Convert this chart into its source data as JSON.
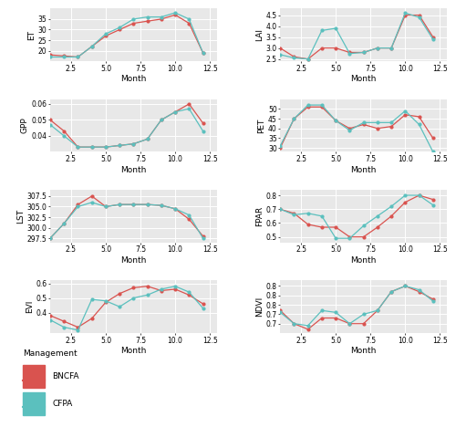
{
  "months": [
    1,
    2,
    3,
    4,
    5,
    6,
    7,
    8,
    9,
    10,
    11,
    12
  ],
  "ET": {
    "BNCFA": [
      18,
      17.5,
      17,
      22,
      27,
      30,
      33,
      34,
      35,
      37,
      33,
      19
    ],
    "CFPA": [
      17,
      17,
      17,
      22,
      28,
      31,
      35,
      36,
      36,
      38,
      35,
      19
    ]
  },
  "LAI": {
    "BNCFA": [
      3.0,
      2.6,
      2.5,
      3.0,
      3.0,
      2.8,
      2.8,
      3.0,
      3.0,
      4.5,
      4.5,
      3.5
    ],
    "CFPA": [
      2.7,
      2.55,
      2.5,
      3.8,
      3.9,
      2.75,
      2.8,
      3.0,
      3.0,
      4.6,
      4.4,
      3.4
    ]
  },
  "GPP": {
    "BNCFA": [
      0.05,
      0.043,
      0.033,
      0.033,
      0.033,
      0.034,
      0.035,
      0.038,
      0.05,
      0.055,
      0.06,
      0.048
    ],
    "CFPA": [
      0.047,
      0.04,
      0.033,
      0.033,
      0.033,
      0.034,
      0.035,
      0.038,
      0.05,
      0.055,
      0.057,
      0.043
    ]
  },
  "PET": {
    "BNCFA": [
      30,
      45,
      51,
      51,
      44,
      40,
      42,
      40,
      41,
      47,
      46,
      35
    ],
    "CFPA": [
      31,
      45,
      52,
      52,
      44,
      39,
      43,
      43,
      43,
      49,
      42,
      28
    ]
  },
  "LST": {
    "BNCFA": [
      297.5,
      301,
      305.5,
      307.5,
      305,
      305.5,
      305.5,
      305.5,
      305.3,
      304.5,
      302,
      298
    ],
    "CFPA": [
      297.5,
      301,
      305,
      306,
      305,
      305.5,
      305.5,
      305.5,
      305.3,
      304.5,
      303,
      297.5
    ]
  },
  "FPAR": {
    "BNCFA": [
      0.7,
      0.67,
      0.59,
      0.57,
      0.57,
      0.5,
      0.5,
      0.57,
      0.65,
      0.75,
      0.8,
      0.77
    ],
    "CFPA": [
      0.7,
      0.66,
      0.67,
      0.65,
      0.49,
      0.49,
      0.58,
      0.65,
      0.72,
      0.8,
      0.8,
      0.73
    ]
  },
  "EVI": {
    "BNCFA": [
      0.38,
      0.34,
      0.3,
      0.36,
      0.47,
      0.53,
      0.57,
      0.58,
      0.55,
      0.56,
      0.52,
      0.46
    ],
    "CFPA": [
      0.35,
      0.3,
      0.28,
      0.49,
      0.48,
      0.44,
      0.5,
      0.52,
      0.56,
      0.58,
      0.54,
      0.43
    ]
  },
  "NDVI": {
    "BNCFA": [
      0.72,
      0.65,
      0.62,
      0.68,
      0.68,
      0.65,
      0.65,
      0.72,
      0.82,
      0.85,
      0.82,
      0.78
    ],
    "CFPA": [
      0.71,
      0.65,
      0.64,
      0.72,
      0.71,
      0.65,
      0.7,
      0.72,
      0.82,
      0.85,
      0.83,
      0.77
    ]
  },
  "color_BNCFA": "#d9534f",
  "color_CFPA": "#5bc0be",
  "bg_color": "#e8e8e8",
  "grid_color": "white",
  "xlabel": "Month",
  "ylims": {
    "ET": [
      15,
      40
    ],
    "LAI": [
      2.4,
      4.8
    ],
    "GPP": [
      0.03,
      0.063
    ],
    "PET": [
      28,
      55
    ],
    "LST": [
      296.5,
      309
    ],
    "FPAR": [
      0.46,
      0.84
    ],
    "EVI": [
      0.26,
      0.62
    ],
    "NDVI": [
      0.6,
      0.88
    ]
  },
  "yticks": {
    "ET": [
      20,
      25,
      30,
      35
    ],
    "LAI": [
      2.5,
      3.0,
      3.5,
      4.0,
      4.5
    ],
    "GPP": [
      0.04,
      0.05,
      0.06
    ],
    "PET": [
      30,
      35,
      40,
      45,
      50
    ],
    "LST": [
      297.5,
      300.0,
      302.5,
      305.0,
      307.5
    ],
    "FPAR": [
      0.5,
      0.6,
      0.7,
      0.8
    ],
    "EVI": [
      0.4,
      0.5,
      0.6
    ],
    "NDVI": [
      0.65,
      0.7,
      0.75,
      0.8,
      0.85
    ]
  },
  "xticks": [
    2.5,
    5.0,
    7.5,
    10.0,
    12.5
  ]
}
